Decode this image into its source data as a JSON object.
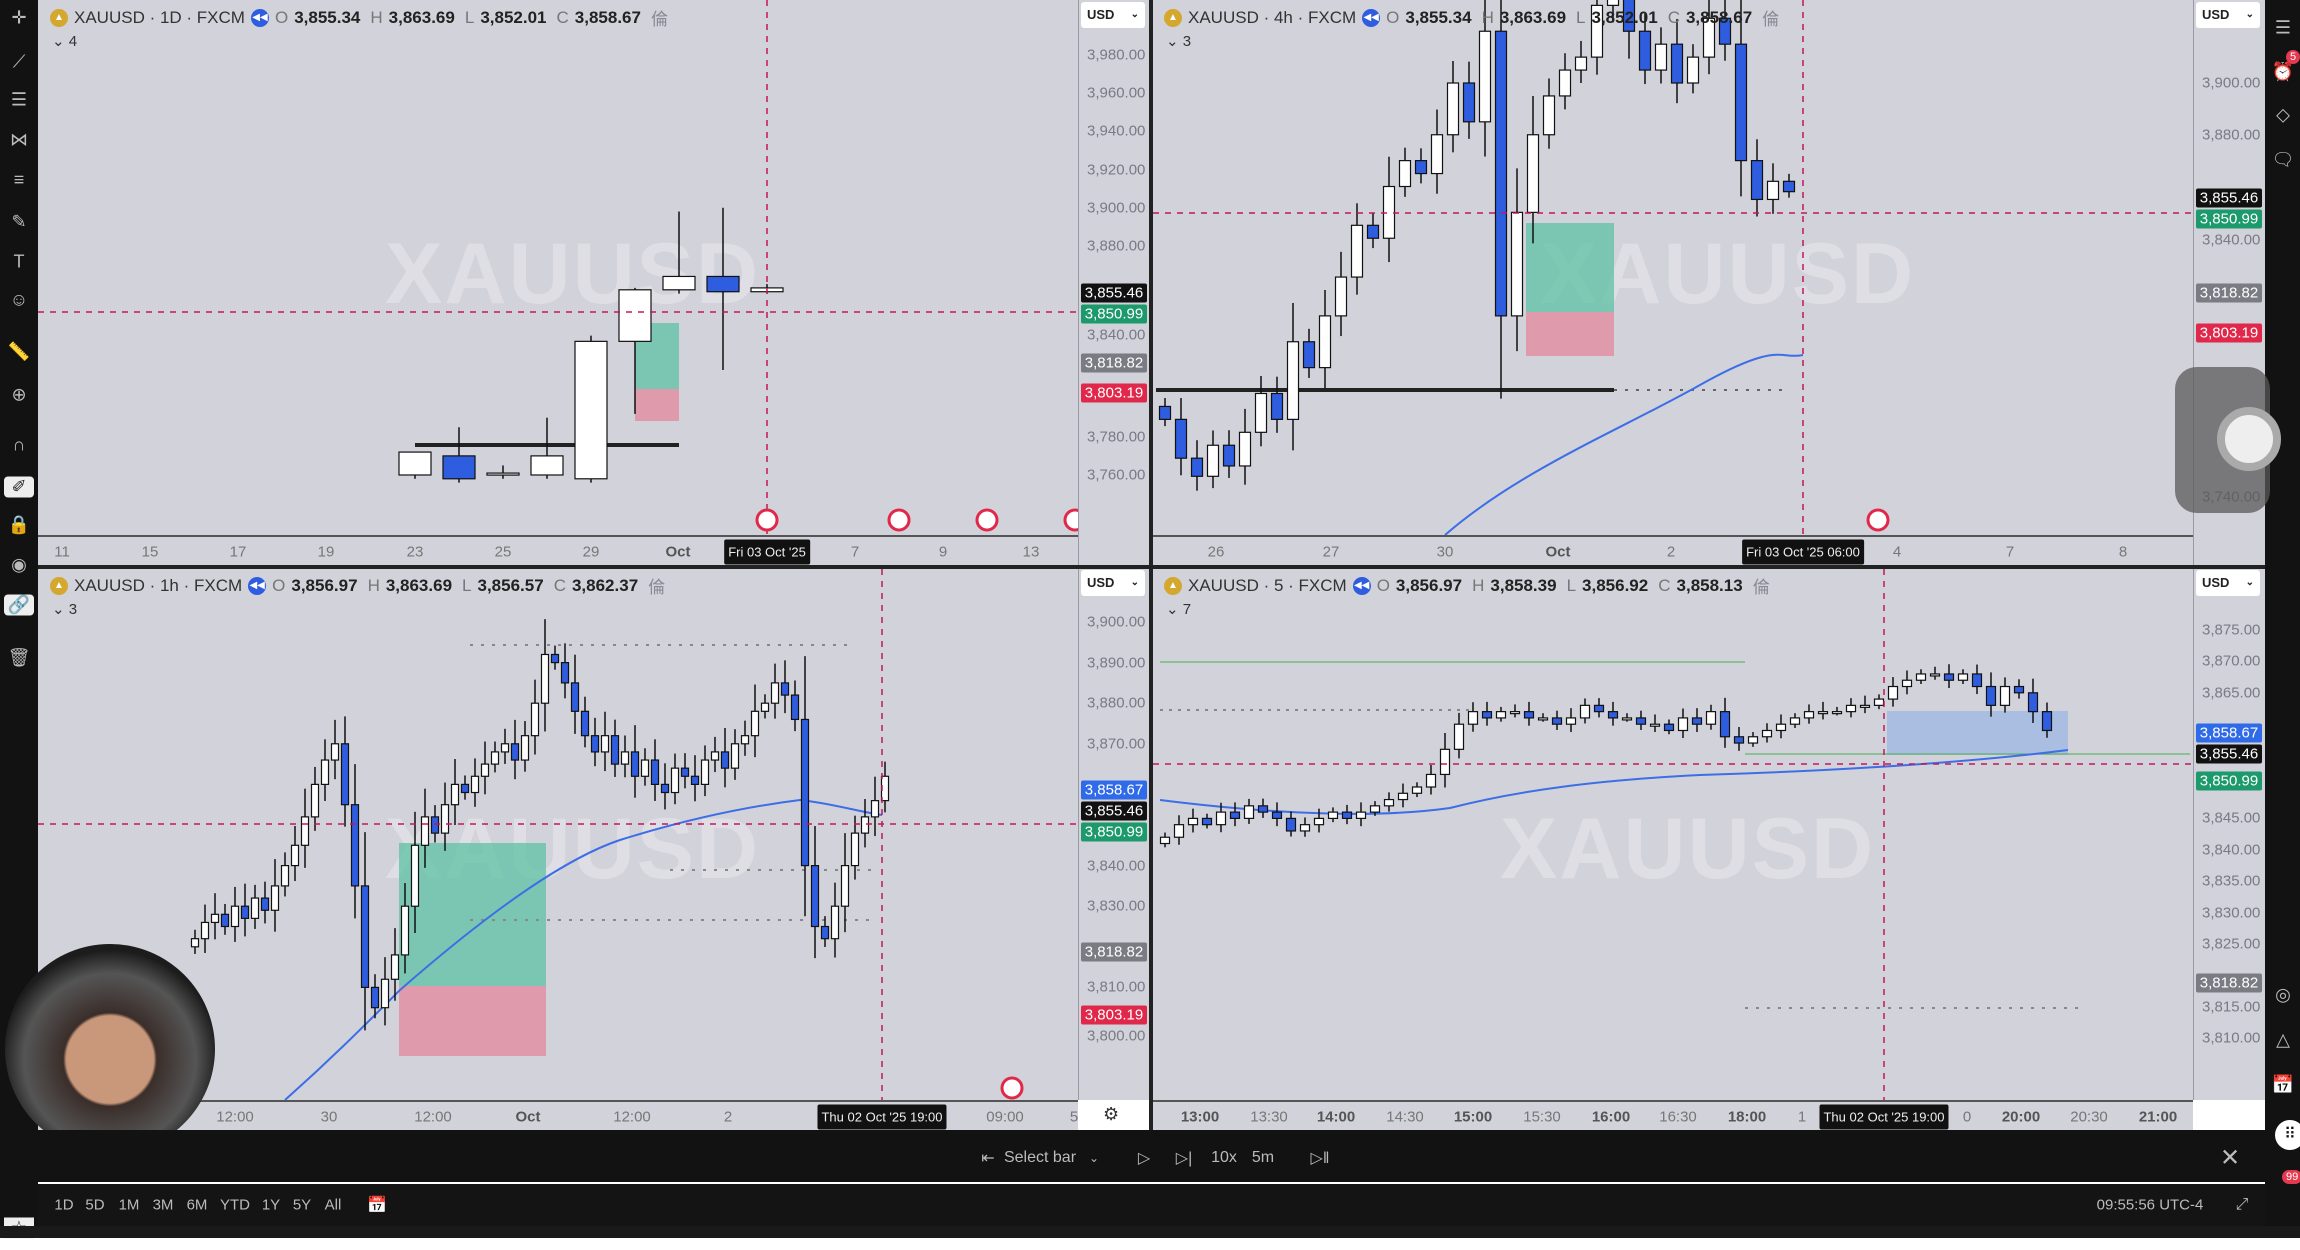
{
  "colors": {
    "up": "#ffffff",
    "down": "#2f5de0",
    "bg": "#d2d2da",
    "crosshair": "#c2185b",
    "ma": "#3d6ee6",
    "tp": "#5cc1a4",
    "sl": "#e3889b"
  },
  "watermark": "XAUUSD",
  "currency": "USD",
  "panes": {
    "tl": {
      "symbol": "XAUUSD · 1D · FXCM",
      "o": "3,855.34",
      "h": "3,863.69",
      "l": "3,852.01",
      "c": "3,858.67",
      "extra": "倫",
      "count": "4",
      "price_ticks": [
        "3,980.00",
        "3,960.00",
        "3,940.00",
        "3,920.00",
        "3,900.00",
        "3,880.00",
        "3,840.00",
        "3,780.00",
        "3,760.00"
      ],
      "price_labels": [
        {
          "text": "3,850.99",
          "kind": "green",
          "value": 3850.99
        },
        {
          "text": "3,855.46",
          "kind": "black",
          "value": 3855.46
        },
        {
          "text": "3,818.82",
          "kind": "gray",
          "value": 3818.82
        },
        {
          "text": "3,803.19",
          "kind": "red",
          "value": 3803.19
        }
      ],
      "time_ticks": [
        "11",
        "15",
        "17",
        "19",
        "23",
        "25",
        "29",
        "Oct",
        "7",
        "9",
        "13"
      ],
      "cursor_time": "Fri 03 Oct '25",
      "candles": [
        [
          3760,
          3772,
          3758,
          3772
        ],
        [
          3770,
          3785,
          3756,
          3758
        ],
        [
          3760,
          3765,
          3758,
          3761
        ],
        [
          3760,
          3790,
          3758,
          3770
        ],
        [
          3758,
          3833,
          3756,
          3830
        ],
        [
          3830,
          3858,
          3792,
          3857
        ],
        [
          3857,
          3898,
          3855,
          3864
        ],
        [
          3864,
          3900,
          3815,
          3856
        ],
        [
          3856,
          3860,
          3855,
          3858
        ]
      ]
    },
    "tr": {
      "symbol": "XAUUSD · 4h · FXCM",
      "o": "3,855.34",
      "h": "3,863.69",
      "l": "3,852.01",
      "c": "3,858.67",
      "extra": "倫",
      "count": "3",
      "price_ticks": [
        "3,900.00",
        "3,880.00",
        "3,840.00",
        "3,740.00"
      ],
      "price_labels": [
        {
          "text": "3,850.99",
          "kind": "green",
          "value": 3850.99
        },
        {
          "text": "3,855.46",
          "kind": "black",
          "value": 3855.46
        },
        {
          "text": "3,818.82",
          "kind": "gray",
          "value": 3818.82
        },
        {
          "text": "3,803.19",
          "kind": "red",
          "value": 3803.19
        }
      ],
      "time_ticks": [
        "26",
        "27",
        "30",
        "Oct",
        "2",
        "4",
        "7",
        "8"
      ],
      "cursor_time": "Fri 03 Oct '25   06:00",
      "first_open": 3775,
      "closes": [
        3770,
        3755,
        3748,
        3760,
        3752,
        3765,
        3780,
        3770,
        3800,
        3790,
        3810,
        3825,
        3845,
        3840,
        3860,
        3870,
        3865,
        3880,
        3900,
        3885,
        3920,
        3810,
        3850,
        3880,
        3895,
        3905,
        3910,
        3930,
        3945,
        3920,
        3905,
        3915,
        3900,
        3910,
        3925,
        3915,
        3870,
        3855,
        3862,
        3858
      ]
    },
    "bl": {
      "symbol": "XAUUSD · 1h · FXCM",
      "o": "3,856.97",
      "h": "3,863.69",
      "l": "3,856.57",
      "c": "3,862.37",
      "extra": "倫",
      "count": "3",
      "price_ticks": [
        "3,900.00",
        "3,890.00",
        "3,880.00",
        "3,870.00",
        "3,840.00",
        "3,830.00",
        "3,810.00",
        "3,800.00"
      ],
      "price_labels": [
        {
          "text": "3,858.67",
          "kind": "blue",
          "value": 3858.67
        },
        {
          "text": "3,850.99",
          "kind": "green",
          "value": 3850.99
        },
        {
          "text": "3,855.46",
          "kind": "black",
          "value": 3855.46
        },
        {
          "text": "3,818.82",
          "kind": "gray",
          "value": 3818.82
        },
        {
          "text": "3,803.19",
          "kind": "red",
          "value": 3803.19
        }
      ],
      "time_ticks": [
        "12:00",
        "30",
        "12:00",
        "Oct",
        "12:00",
        "2",
        "09:00",
        "5"
      ],
      "cursor_time": "Thu 02 Oct '25   19:00",
      "first_open": 3820,
      "closes": [
        3822,
        3826,
        3828,
        3825,
        3830,
        3827,
        3832,
        3829,
        3835,
        3840,
        3845,
        3852,
        3860,
        3866,
        3870,
        3855,
        3835,
        3810,
        3805,
        3812,
        3818,
        3830,
        3845,
        3852,
        3848,
        3855,
        3860,
        3858,
        3862,
        3865,
        3868,
        3870,
        3866,
        3872,
        3880,
        3892,
        3890,
        3885,
        3878,
        3872,
        3868,
        3872,
        3865,
        3868,
        3862,
        3866,
        3860,
        3858,
        3864,
        3862,
        3860,
        3866,
        3868,
        3864,
        3870,
        3872,
        3878,
        3880,
        3885,
        3882,
        3876,
        3840,
        3825,
        3822,
        3830,
        3840,
        3848,
        3852,
        3856,
        3862
      ]
    },
    "br": {
      "symbol": "XAUUSD · 5 · FXCM",
      "o": "3,856.97",
      "h": "3,858.39",
      "l": "3,856.92",
      "c": "3,858.13",
      "extra": "倫",
      "count": "7",
      "price_ticks": [
        "3,875.00",
        "3,870.00",
        "3,865.00",
        "3,845.00",
        "3,840.00",
        "3,835.00",
        "3,830.00",
        "3,825.00",
        "3,815.00",
        "3,810.00"
      ],
      "price_labels": [
        {
          "text": "3,858.67",
          "kind": "blue",
          "value": 3858.67
        },
        {
          "text": "3,855.46",
          "kind": "black",
          "value": 3855.46
        },
        {
          "text": "3,850.99",
          "kind": "green",
          "value": 3850.99
        },
        {
          "text": "3,818.82",
          "kind": "gray",
          "value": 3818.82
        }
      ],
      "time_ticks": [
        "13:00",
        "13:30",
        "14:00",
        "14:30",
        "15:00",
        "15:30",
        "16:00",
        "16:30",
        "18:00",
        "1",
        "0",
        "20:00",
        "20:30",
        "21:00"
      ],
      "cursor_time": "Thu 02 Oct '25   19:00",
      "first_open": 3841,
      "closes": [
        3842,
        3844,
        3845,
        3844,
        3846,
        3845,
        3847,
        3846,
        3845,
        3843,
        3844,
        3845,
        3846,
        3845,
        3846,
        3847,
        3848,
        3849,
        3850,
        3852,
        3856,
        3860,
        3862,
        3861,
        3862,
        3862,
        3861,
        3861,
        3860,
        3861,
        3863,
        3862,
        3861,
        3861,
        3860,
        3860,
        3859,
        3861,
        3860,
        3862,
        3858,
        3857,
        3858,
        3859,
        3860,
        3861,
        3862,
        3862,
        3862,
        3863,
        3863,
        3864,
        3866,
        3867,
        3868,
        3868,
        3867,
        3868,
        3866,
        3863,
        3866,
        3865,
        3862,
        3859
      ]
    }
  },
  "replay": {
    "select_bar": "Select bar",
    "speed": "10x",
    "interval": "5m"
  },
  "ranges": [
    "1D",
    "5D",
    "1M",
    "3M",
    "6M",
    "YTD",
    "1Y",
    "5Y",
    "All"
  ],
  "clock": "09:55:56 UTC-4",
  "badges": {
    "alerts": "5",
    "notifications": "99"
  }
}
